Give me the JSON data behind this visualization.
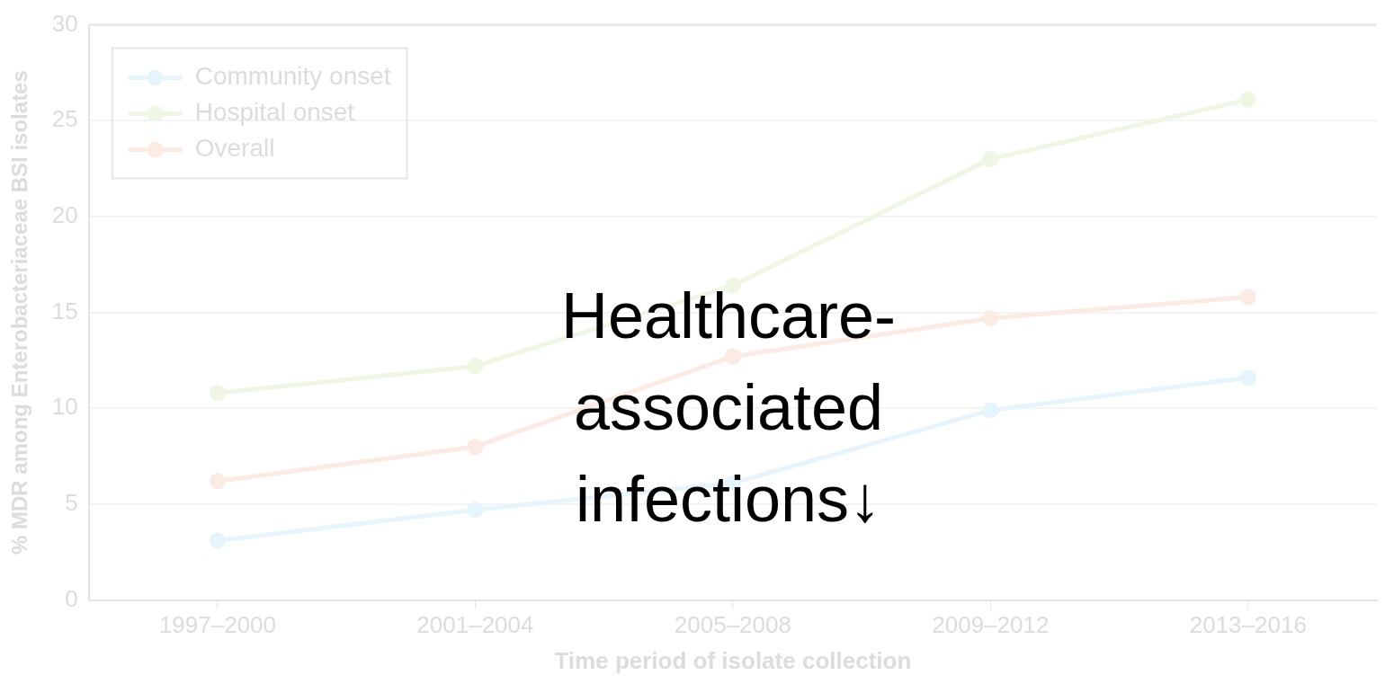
{
  "chart_data": {
    "type": "line",
    "xlabel": "Time period of isolate collection",
    "ylabel": "% MDR among Enterobacteriaceae BSI isolates",
    "categories": [
      "1997–2000",
      "2001–2004",
      "2005–2008",
      "2009–2012",
      "2013–2016"
    ],
    "series": [
      {
        "name": "Community onset",
        "color": "#e6f5fb",
        "values": [
          3.1,
          4.7,
          6.1,
          9.9,
          11.6
        ]
      },
      {
        "name": "Hospital onset",
        "color": "#eff6e3",
        "values": [
          10.8,
          12.2,
          16.4,
          23.0,
          26.1
        ]
      },
      {
        "name": "Overall",
        "color": "#fcebe2",
        "values": [
          6.2,
          8.0,
          12.7,
          14.7,
          15.8
        ]
      }
    ],
    "ylim": [
      0,
      30
    ],
    "yticks": [
      0,
      5,
      10,
      15,
      20,
      25,
      30
    ],
    "grid": "y",
    "legend": "top left",
    "marker": "circle",
    "line_style": "solid",
    "annotations": [
      "Healthcare-associated infections↓"
    ]
  }
}
